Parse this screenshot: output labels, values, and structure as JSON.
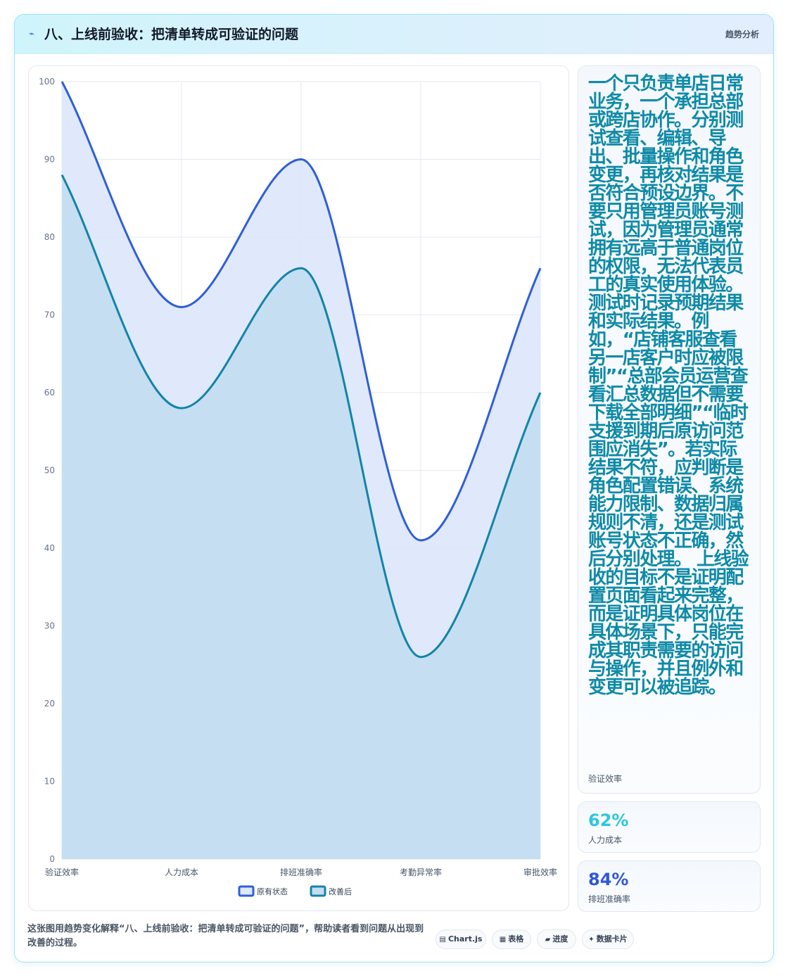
{
  "header": {
    "icon": "trend-icon",
    "title": "八、上线前验收：把清单转成可验证的问题",
    "tag": "趋势分析"
  },
  "chart_data": {
    "type": "area",
    "categories": [
      "验证效率",
      "人力成本",
      "排班准确率",
      "考勤异常率",
      "审批效率"
    ],
    "series": [
      {
        "name": "原有状态",
        "values": [
          100,
          71,
          90,
          41,
          76
        ],
        "color": "#2f5fd6",
        "fill": "#dde8fb"
      },
      {
        "name": "改善后",
        "values": [
          88,
          58,
          76,
          26,
          60
        ],
        "color": "#1284a8",
        "fill": "#c4ddf1"
      }
    ],
    "ylim": [
      0,
      100
    ],
    "yticks": [
      0,
      10,
      20,
      30,
      40,
      50,
      60,
      70,
      80,
      90,
      100
    ],
    "grid": true,
    "legend_position": "bottom"
  },
  "side": {
    "long_text": "一个只负责单店日常业务，一个承担总部或跨店协作。分别测试查看、编辑、导出、批量操作和角色变更，再核对结果是否符合预设边界。不要只用管理员账号测试，因为管理员通常拥有远高于普通岗位的权限，无法代表员工的真实使用体验。 测试时记录预期结果和实际结果。例如，“店铺客服查看另一店客户时应被限制”“总部会员运营查看汇总数据但不需要下载全部明细”“临时支援到期后原访问范围应消失”。若实际结果不符，应判断是角色配置错误、系统能力限制、数据归属规则不清，还是测试账号状态不正确，然后分别处理。 上线验收的目标不是证明配置页面看起来完整，而是证明具体岗位在具体场景下，只能完成其职责需要的访问与操作，并且例外和变更可以被追踪。",
    "long_text_label": "验证效率",
    "stats": [
      {
        "value": "62%",
        "label": "人力成本"
      },
      {
        "value": "84%",
        "label": "排班准确率"
      }
    ]
  },
  "footer": {
    "description": "这张图用趋势变化解释“八、上线前验收：把清单转成可验证的问题”，帮助读者看到问题从出现到改善的过程。",
    "pills": [
      {
        "icon": "▤",
        "label": "Chart.js"
      },
      {
        "icon": "▦",
        "label": "表格"
      },
      {
        "icon": "▰",
        "label": "进度"
      },
      {
        "icon": "✦",
        "label": "数据卡片"
      }
    ]
  }
}
